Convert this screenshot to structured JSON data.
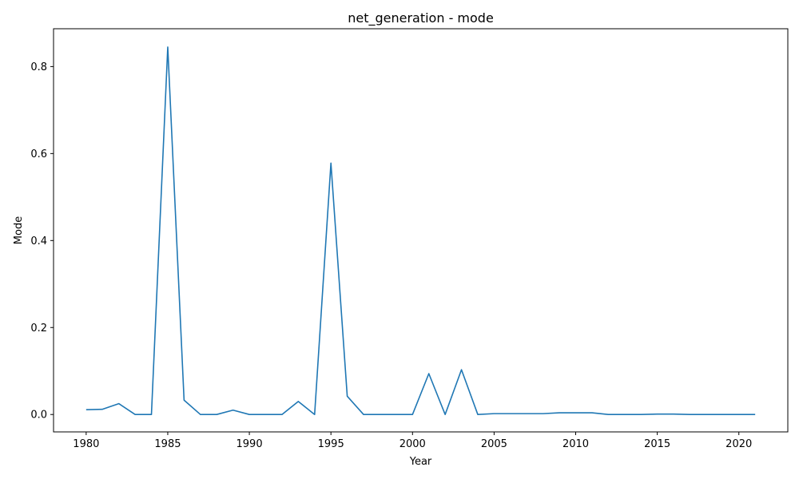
{
  "chart_data": {
    "type": "line",
    "title": "net_generation - mode",
    "xlabel": "Year",
    "ylabel": "Mode",
    "xlim": [
      1978,
      2023
    ],
    "ylim": [
      -0.04,
      0.887
    ],
    "xticks": [
      1980,
      1985,
      1990,
      1995,
      2000,
      2005,
      2010,
      2015,
      2020
    ],
    "yticks": [
      0.0,
      0.2,
      0.4,
      0.6,
      0.8
    ],
    "ytick_labels": [
      "0.0",
      "0.2",
      "0.4",
      "0.6",
      "0.8"
    ],
    "grid": false,
    "series": [
      {
        "color": "#1f77b4",
        "x": [
          1980,
          1981,
          1982,
          1983,
          1984,
          1985,
          1986,
          1987,
          1988,
          1989,
          1990,
          1991,
          1992,
          1993,
          1994,
          1995,
          1996,
          1997,
          1998,
          1999,
          2000,
          2001,
          2002,
          2003,
          2004,
          2005,
          2006,
          2007,
          2008,
          2009,
          2010,
          2011,
          2012,
          2013,
          2014,
          2015,
          2016,
          2017,
          2018,
          2019,
          2020,
          2021
        ],
        "y": [
          0.011,
          0.012,
          0.025,
          0.0,
          0.0,
          0.845,
          0.033,
          0.0,
          0.0,
          0.01,
          0.0,
          0.0,
          0.0,
          0.03,
          0.0,
          0.578,
          0.042,
          0.0,
          0.0,
          0.0,
          0.0,
          0.094,
          0.0,
          0.103,
          0.0,
          0.002,
          0.002,
          0.002,
          0.002,
          0.004,
          0.004,
          0.004,
          0.0,
          0.0,
          0.0,
          0.001,
          0.001,
          0.0,
          0.0,
          0.0,
          0.0,
          0.0
        ]
      }
    ]
  }
}
